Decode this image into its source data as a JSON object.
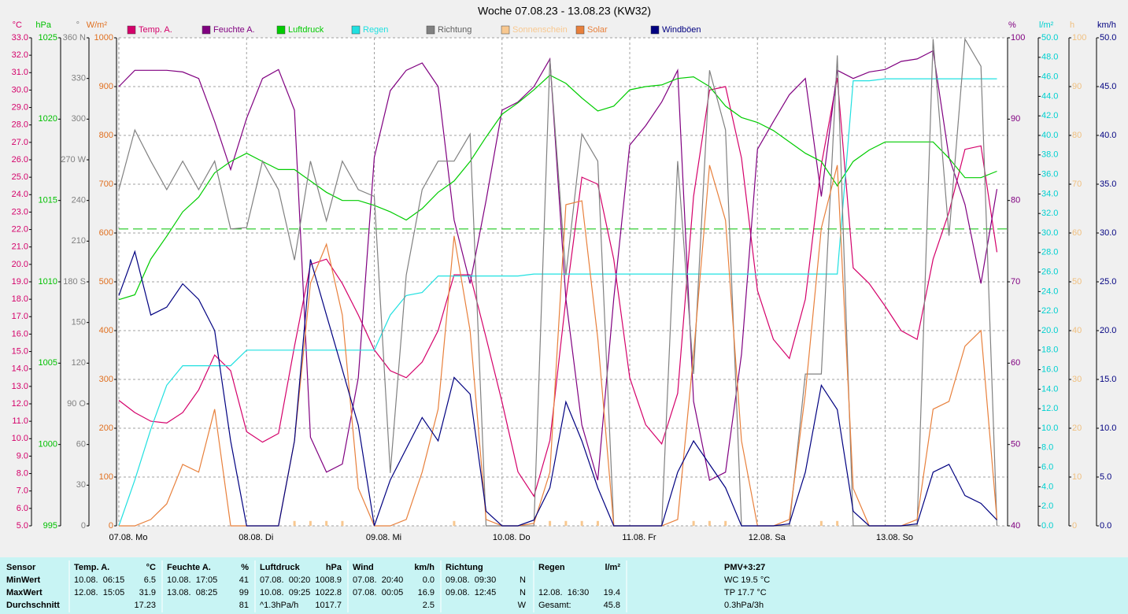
{
  "chart_data": {
    "type": "line",
    "title": "Woche 07.08.23 - 13.08.23 (KW32)",
    "x": [
      0,
      3,
      6,
      9,
      12,
      15,
      18,
      21,
      24,
      27,
      30,
      33,
      36,
      39,
      42,
      45,
      48,
      51,
      54,
      57,
      60,
      63,
      66,
      69,
      72,
      75,
      78,
      81,
      84,
      87,
      90,
      93,
      96,
      99,
      102,
      105,
      108,
      111,
      114,
      117,
      120,
      123,
      126,
      129,
      132,
      135,
      138,
      141,
      144,
      147,
      150,
      153,
      156,
      159,
      162,
      165
    ],
    "xlim": [
      0,
      167
    ],
    "xticks": [
      {
        "value": 0,
        "label": "07.08. Mo"
      },
      {
        "value": 24,
        "label": "08.08. Di"
      },
      {
        "value": 48,
        "label": "09.08. Mi"
      },
      {
        "value": 72,
        "label": "10.08. Do"
      },
      {
        "value": 96,
        "label": "11.08. Fr"
      },
      {
        "value": 120,
        "label": "12.08. Sa"
      },
      {
        "value": 144,
        "label": "13.08. So"
      }
    ],
    "grid": true,
    "legend": "top",
    "axes": {
      "temp": {
        "unit": "°C",
        "color": "#d4006a",
        "side": "left",
        "ylim": [
          5,
          33
        ],
        "yticks": [
          {
            "value": 5,
            "label": "5.0"
          },
          {
            "value": 6,
            "label": "6.0"
          },
          {
            "value": 7,
            "label": "7.0"
          },
          {
            "value": 8,
            "label": "8.0"
          },
          {
            "value": 9,
            "label": "9.0"
          },
          {
            "value": 10,
            "label": "10.0"
          },
          {
            "value": 11,
            "label": "11.0"
          },
          {
            "value": 12,
            "label": "12.0"
          },
          {
            "value": 13,
            "label": "13.0"
          },
          {
            "value": 14,
            "label": "14.0"
          },
          {
            "value": 15,
            "label": "15.0"
          },
          {
            "value": 16,
            "label": "16.0"
          },
          {
            "value": 17,
            "label": "17.0"
          },
          {
            "value": 18,
            "label": "18.0"
          },
          {
            "value": 19,
            "label": "19.0"
          },
          {
            "value": 20,
            "label": "20.0"
          },
          {
            "value": 21,
            "label": "21.0"
          },
          {
            "value": 22,
            "label": "22.0"
          },
          {
            "value": 23,
            "label": "23.0"
          },
          {
            "value": 24,
            "label": "24.0"
          },
          {
            "value": 25,
            "label": "25.0"
          },
          {
            "value": 26,
            "label": "26.0"
          },
          {
            "value": 27,
            "label": "27.0"
          },
          {
            "value": 28,
            "label": "28.0"
          },
          {
            "value": 29,
            "label": "29.0"
          },
          {
            "value": 30,
            "label": "30.0"
          },
          {
            "value": 31,
            "label": "31.0"
          },
          {
            "value": 32,
            "label": "32.0"
          },
          {
            "value": 33,
            "label": "33.0"
          }
        ]
      },
      "pressure": {
        "unit": "hPa",
        "color": "#00c000",
        "side": "left",
        "ylim": [
          995,
          1025
        ],
        "yticks": [
          995,
          1000,
          1005,
          1010,
          1015,
          1020,
          1025
        ]
      },
      "direction": {
        "unit": "°",
        "color": "#808080",
        "side": "left",
        "ylim": [
          0,
          360
        ],
        "yticks": [
          0,
          30,
          60,
          {
            "value": 90,
            "label": "90 O"
          },
          120,
          150,
          {
            "value": 180,
            "label": "180 S"
          },
          210,
          240,
          {
            "value": 270,
            "label": "270 W"
          },
          300,
          330,
          {
            "value": 360,
            "label": "360 N"
          }
        ]
      },
      "solar": {
        "unit": "W/m²",
        "color": "#e07020",
        "side": "left",
        "ylim": [
          0,
          1000
        ],
        "yticks": [
          0,
          100,
          200,
          300,
          400,
          500,
          600,
          700,
          800,
          900,
          1000
        ]
      },
      "humidity": {
        "unit": "%",
        "color": "#800080",
        "side": "right",
        "ylim": [
          40,
          100
        ],
        "yticks": [
          40,
          50,
          60,
          70,
          80,
          90,
          100
        ]
      },
      "rain": {
        "unit": "l/m²",
        "color": "#00d0d0",
        "side": "right",
        "ylim": [
          0,
          50
        ],
        "yticks": [
          {
            "value": 0,
            "label": "0.0"
          },
          {
            "value": 2,
            "label": "2.0"
          },
          {
            "value": 4,
            "label": "4.0"
          },
          {
            "value": 6,
            "label": "6.0"
          },
          {
            "value": 8,
            "label": "8.0"
          },
          {
            "value": 10,
            "label": "10.0"
          },
          {
            "value": 12,
            "label": "12.0"
          },
          {
            "value": 14,
            "label": "14.0"
          },
          {
            "value": 16,
            "label": "16.0"
          },
          {
            "value": 18,
            "label": "18.0"
          },
          {
            "value": 20,
            "label": "20.0"
          },
          {
            "value": 22,
            "label": "22.0"
          },
          {
            "value": 24,
            "label": "24.0"
          },
          {
            "value": 26,
            "label": "26.0"
          },
          {
            "value": 28,
            "label": "28.0"
          },
          {
            "value": 30,
            "label": "30.0"
          },
          {
            "value": 32,
            "label": "32.0"
          },
          {
            "value": 34,
            "label": "34.0"
          },
          {
            "value": 36,
            "label": "36.0"
          },
          {
            "value": 38,
            "label": "38.0"
          },
          {
            "value": 40,
            "label": "40.0"
          },
          {
            "value": 42,
            "label": "42.0"
          },
          {
            "value": 44,
            "label": "44.0"
          },
          {
            "value": 46,
            "label": "46.0"
          },
          {
            "value": 48,
            "label": "48.0"
          },
          {
            "value": 50,
            "label": "50.0"
          }
        ]
      },
      "sunshine": {
        "unit": "h",
        "color": "#f0c080",
        "side": "right",
        "ylim": [
          0,
          100
        ],
        "yticks": [
          0,
          10,
          20,
          30,
          40,
          50,
          60,
          70,
          80,
          90,
          100
        ]
      },
      "wind": {
        "unit": "km/h",
        "color": "#000080",
        "side": "right",
        "ylim": [
          0,
          50
        ],
        "yticks": [
          {
            "value": 0,
            "label": "0.0"
          },
          {
            "value": 5,
            "label": "5.0"
          },
          {
            "value": 10,
            "label": "10.0"
          },
          {
            "value": 15,
            "label": "15.0"
          },
          {
            "value": 20,
            "label": "20.0"
          },
          {
            "value": 25,
            "label": "25.0"
          },
          {
            "value": 30,
            "label": "30.0"
          },
          {
            "value": 35,
            "label": "35.0"
          },
          {
            "value": 40,
            "label": "40.0"
          },
          {
            "value": 45,
            "label": "45.0"
          },
          {
            "value": 50,
            "label": "50.0"
          }
        ]
      }
    },
    "reference_lines": [
      {
        "axis": "pressure",
        "value": 1013.25,
        "color": "#00c000"
      }
    ],
    "series": [
      {
        "name": "Temp. A.",
        "color": "#d4006a",
        "axis": "temp",
        "values": [
          12.2,
          11.5,
          11.0,
          10.9,
          11.5,
          12.8,
          14.8,
          13.9,
          10.4,
          9.8,
          10.3,
          15.3,
          20.0,
          20.3,
          18.9,
          17.1,
          15.1,
          13.9,
          13.5,
          14.4,
          16.2,
          19.4,
          19.4,
          15.8,
          12.1,
          8.1,
          6.7,
          9.9,
          18.0,
          25.0,
          24.6,
          20.3,
          13.5,
          10.8,
          9.7,
          12.6,
          23.9,
          30.0,
          30.2,
          26.1,
          18.5,
          15.7,
          14.6,
          18.0,
          25.7,
          30.7,
          19.8,
          18.9,
          17.6,
          16.2,
          15.7,
          20.3,
          23.0,
          26.6,
          26.8,
          20.7
        ]
      },
      {
        "name": "Feuchte A.",
        "color": "#800080",
        "axis": "humidity",
        "values": [
          94,
          96,
          96,
          96,
          95.8,
          95,
          89.7,
          83.8,
          90.1,
          95,
          96.1,
          91.1,
          50.9,
          46.6,
          47.6,
          58.2,
          85.3,
          93.5,
          96,
          96.9,
          94,
          77.6,
          69.8,
          80,
          91.1,
          92.1,
          94,
          97.4,
          67.9,
          52.4,
          45.6,
          67.9,
          86.8,
          89.2,
          92.1,
          96,
          55.3,
          45.6,
          46.6,
          61.1,
          86.3,
          89.7,
          93,
          95,
          80.5,
          96,
          95,
          95.8,
          96.1,
          97.1,
          97.4,
          98.4,
          85.3,
          79.5,
          69.8,
          81.4
        ]
      },
      {
        "name": "Luftdruck",
        "color": "#00cc00",
        "axis": "pressure",
        "values": [
          1008.9,
          1009.2,
          1011.4,
          1012.8,
          1014.3,
          1015.2,
          1016.7,
          1017.4,
          1017.9,
          1017.4,
          1016.9,
          1016.9,
          1016.2,
          1015.5,
          1015,
          1015,
          1014.7,
          1014.3,
          1013.8,
          1014.5,
          1015.5,
          1016.2,
          1017.4,
          1018.9,
          1020.3,
          1021,
          1021.8,
          1022.7,
          1022.2,
          1021.3,
          1020.5,
          1020.8,
          1021.8,
          1022,
          1022.1,
          1022.5,
          1022.6,
          1022,
          1020.8,
          1020.1,
          1019.8,
          1019.3,
          1018.6,
          1017.9,
          1017.4,
          1015.9,
          1017.4,
          1018.1,
          1018.6,
          1018.6,
          1018.6,
          1018.6,
          1017.6,
          1016.4,
          1016.4,
          1016.8
        ]
      },
      {
        "name": "Regen",
        "color": "#20e0e0",
        "axis": "rain",
        "values": [
          0,
          4.7,
          9.9,
          14.4,
          16.4,
          16.4,
          16.4,
          16.4,
          18,
          18,
          18,
          18,
          18,
          18,
          18,
          18,
          18,
          21.6,
          23.6,
          23.9,
          25.6,
          25.6,
          25.6,
          25.6,
          25.6,
          25.6,
          25.8,
          25.8,
          25.8,
          25.8,
          25.8,
          25.8,
          25.8,
          25.8,
          25.8,
          25.8,
          25.8,
          25.8,
          25.8,
          25.8,
          25.8,
          25.8,
          25.8,
          25.8,
          25.8,
          25.8,
          45.6,
          45.6,
          45.8,
          45.8,
          45.8,
          45.8,
          45.8,
          45.8,
          45.8,
          45.8
        ]
      },
      {
        "name": "Richtung",
        "color": "#808080",
        "axis": "direction",
        "values": [
          248,
          292,
          269,
          248,
          269,
          248,
          269,
          219,
          220,
          269,
          248,
          196,
          269,
          225,
          269,
          248,
          243,
          39,
          185,
          248,
          269,
          269,
          289,
          0,
          0,
          0,
          0,
          344,
          185,
          289,
          269,
          0,
          0,
          0,
          0,
          269,
          112,
          336,
          292,
          0,
          0,
          0,
          0,
          112,
          112,
          347,
          0,
          0,
          0,
          0,
          0,
          359,
          214,
          359,
          339,
          0
        ]
      },
      {
        "name": "Sonnenschein",
        "color": "#f8c890",
        "axis": "sunshine",
        "style": "bar",
        "values": [
          0,
          0,
          0,
          0,
          0,
          0,
          0,
          0,
          0,
          0,
          0,
          1,
          1,
          1,
          1,
          0,
          0,
          0,
          0,
          0,
          0,
          1,
          0,
          0,
          0,
          0,
          0,
          1,
          1,
          1,
          1,
          0,
          0,
          0,
          0,
          0,
          1,
          1,
          1,
          0,
          0,
          0,
          0,
          0,
          1,
          1,
          0,
          0,
          0,
          0,
          0,
          0,
          0,
          0,
          0,
          0
        ]
      },
      {
        "name": "Solar",
        "color": "#e8803c",
        "axis": "solar",
        "values": [
          0,
          0,
          13,
          45,
          126,
          110,
          239,
          0,
          0,
          0,
          0,
          174,
          497,
          577,
          432,
          77,
          0,
          0,
          13,
          110,
          239,
          594,
          400,
          13,
          0,
          0,
          5,
          110,
          658,
          666,
          384,
          0,
          0,
          0,
          0,
          13,
          352,
          739,
          626,
          174,
          0,
          0,
          13,
          271,
          610,
          739,
          77,
          0,
          0,
          0,
          13,
          239,
          255,
          368,
          400,
          13
        ]
      },
      {
        "name": "Windböen",
        "color": "#000080",
        "axis": "wind",
        "values": [
          23.6,
          28.1,
          21.6,
          22.4,
          24.8,
          23.2,
          20.0,
          8.7,
          0,
          0,
          0,
          8.7,
          27.3,
          21.6,
          16.0,
          10.3,
          0,
          4.7,
          7.9,
          11.1,
          8.7,
          15.2,
          13.5,
          1.5,
          0,
          0,
          0.6,
          3.9,
          12.7,
          8.7,
          3.9,
          0,
          0,
          0,
          0,
          5.5,
          8.7,
          6.3,
          3.9,
          0,
          0,
          0,
          0.2,
          5.5,
          14.4,
          11.9,
          1.5,
          0,
          0,
          0,
          0.2,
          5.5,
          6.3,
          3.1,
          2.3,
          0.6
        ]
      }
    ]
  },
  "table": {
    "rows": [
      [
        "Sensor",
        "Temp. A.",
        "°C",
        "Feuchte A.",
        "%",
        "Luftdruck",
        "hPa",
        "Wind",
        "km/h",
        "Richtung",
        null,
        "Regen",
        "l/m²",
        "PMV+3:27"
      ],
      [
        "MinWert",
        "10.08.  06:15",
        "6.5",
        "10.08.  17:05",
        "41",
        "07.08.  00:20",
        "1008.9",
        "07.08.  20:40",
        "0.0",
        "09.08.  09:30",
        "N",
        null,
        null,
        "WC 19.5 °C"
      ],
      [
        "MaxWert",
        "12.08.  15:05",
        "31.9",
        "13.08.  08:25",
        "99",
        "10.08.  09:25",
        "1022.8",
        "07.08.  00:05",
        "16.9",
        "09.08.  12:45",
        "N",
        "12.08.  16:30",
        "19.4",
        "TP 17.7 °C"
      ],
      [
        "Durchschnitt",
        null,
        "17.23",
        null,
        "81",
        "^1.3hPa/h",
        "1017.7",
        null,
        "2.5",
        null,
        "W",
        "Gesamt:",
        "45.8",
        "0.3hPa/3h"
      ]
    ]
  }
}
